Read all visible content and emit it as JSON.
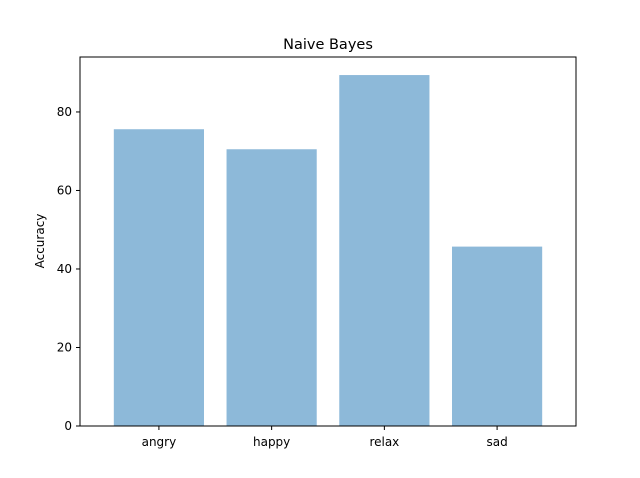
{
  "chart_data": {
    "type": "bar",
    "title": "Naive Bayes",
    "xlabel": "",
    "ylabel": "Accuracy",
    "categories": [
      "angry",
      "happy",
      "relax",
      "sad"
    ],
    "values": [
      75.6,
      70.5,
      89.4,
      45.7
    ],
    "ylim": [
      0,
      94
    ],
    "yticks": [
      0,
      20,
      40,
      60,
      80
    ],
    "grid": false,
    "bar_color": "#8db9d9"
  }
}
